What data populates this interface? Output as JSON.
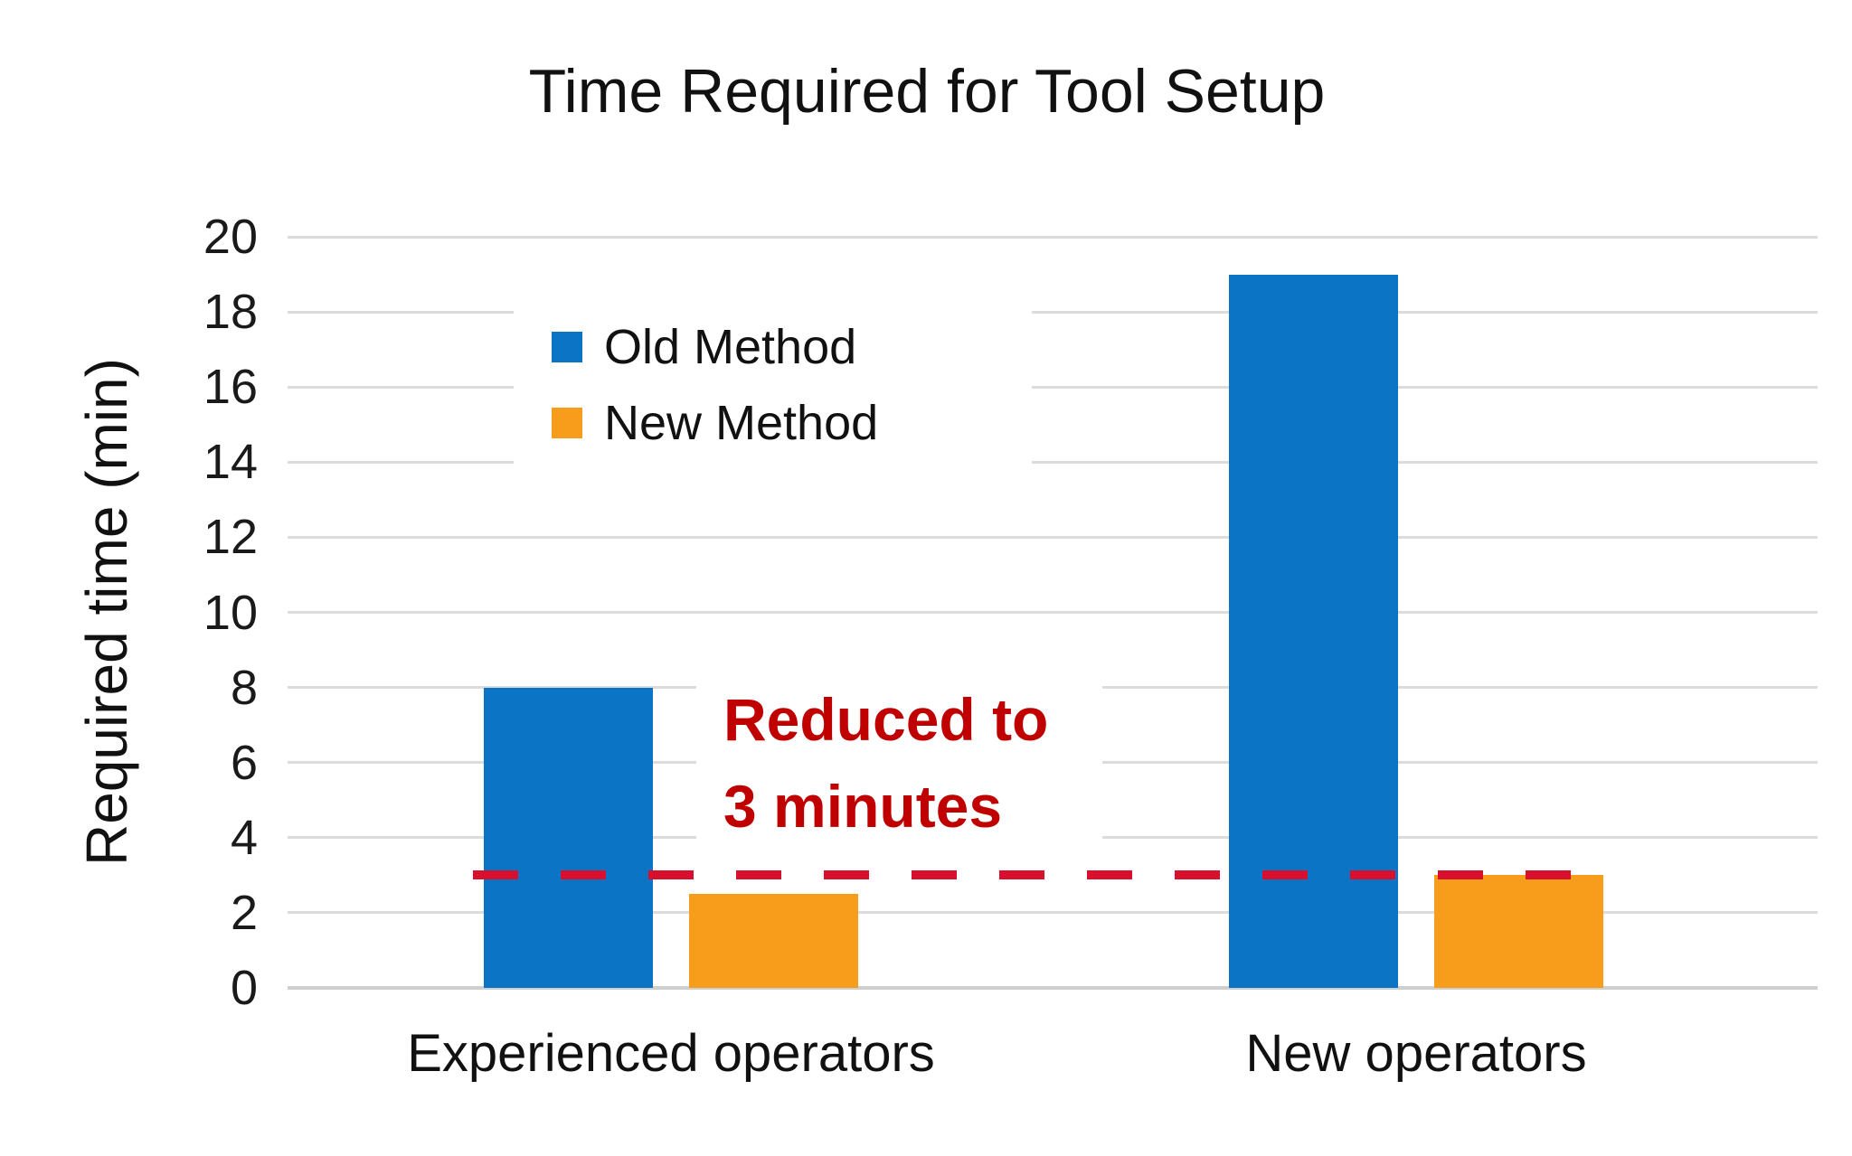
{
  "title": "Time Required for Tool Setup",
  "colors": {
    "old_method_blue": "#0b74c4",
    "new_method_orange": "#f89c1c",
    "dashed_line_red": "#d8102e",
    "annotation_red": "#c00000",
    "gridline_gray": "#dcdcdc"
  },
  "chart_data": {
    "type": "bar",
    "title": "Time Required for Tool Setup",
    "xlabel": "",
    "ylabel": "Required time (min)",
    "categories": [
      "Experienced operators",
      "New operators"
    ],
    "series": [
      {
        "name": "Old Method",
        "values": [
          8,
          19
        ],
        "color": "#0b74c4"
      },
      {
        "name": "New Method",
        "values": [
          2.5,
          3
        ],
        "color": "#f89c1c"
      }
    ],
    "ylim": [
      0,
      20
    ],
    "yticks": [
      0,
      2,
      4,
      6,
      8,
      10,
      12,
      14,
      16,
      18,
      20
    ],
    "grid": true,
    "legend_position": "inside-upper-left",
    "reference_line": {
      "value": 3,
      "style": "dashed",
      "color": "#d8102e"
    },
    "annotation": {
      "lines": [
        "Reduced to",
        "3 minutes"
      ],
      "color": "#c00000"
    }
  }
}
